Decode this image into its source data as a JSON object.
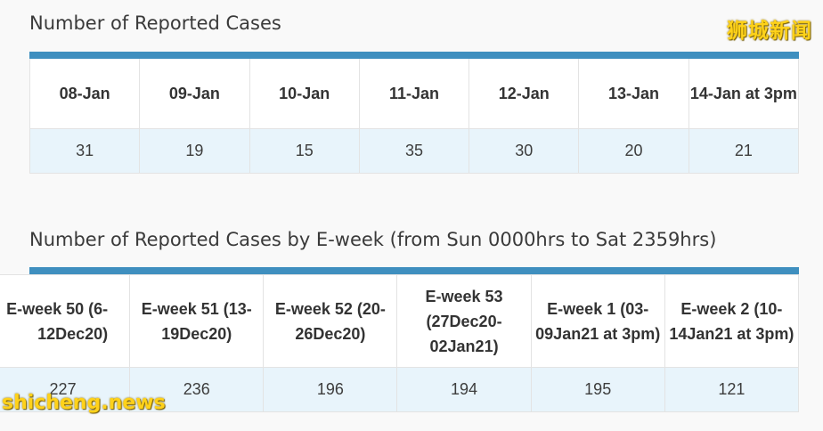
{
  "section1": {
    "title": "Number of Reported Cases",
    "headers": [
      "08-Jan",
      "09-Jan",
      "10-Jan",
      "11-Jan",
      "12-Jan",
      "13-Jan",
      "14-Jan at 3pm"
    ],
    "values": [
      "31",
      "19",
      "15",
      "35",
      "30",
      "20",
      "21"
    ]
  },
  "section2": {
    "title": "Number of Reported Cases by E-week (from Sun 0000hrs to Sat 2359hrs)",
    "headers": [
      "E-week 50 (6-12Dec20)",
      "E-week 51 (13-19Dec20)",
      "E-week 52 (20-26Dec20)",
      "E-week 53 (27Dec20-02Jan21)",
      "E-week 1 (03-09Jan21 at 3pm)",
      "E-week 2 (10-14Jan21 at 3pm)"
    ],
    "values": [
      "227",
      "236",
      "196",
      "194",
      "195",
      "121"
    ]
  },
  "watermarks": {
    "top_right": "狮城新闻",
    "bottom_left": "shicheng.news"
  },
  "colors": {
    "accent_bar": "#3f8fbf",
    "value_row_bg": "#e8f4fb",
    "watermark": "#ffd21a"
  }
}
